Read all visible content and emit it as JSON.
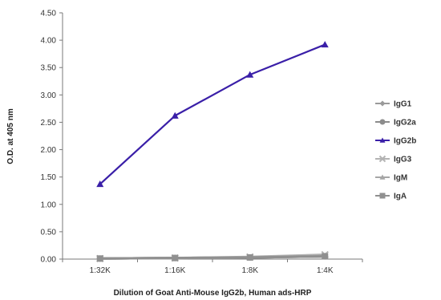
{
  "chart_data": {
    "type": "line",
    "title": "",
    "xlabel": "Dilution of Goat Anti-Mouse IgG2b, Human ads-HRP",
    "ylabel": "O.D. at 405 nm",
    "categories": [
      "1:32K",
      "1:16K",
      "1:8K",
      "1:4K"
    ],
    "ylim": [
      0,
      4.5
    ],
    "yticks": [
      "0.00",
      "0.50",
      "1.00",
      "1.50",
      "2.00",
      "2.50",
      "3.00",
      "3.50",
      "4.00",
      "4.50"
    ],
    "grid": false,
    "legend_position": "right",
    "series": [
      {
        "name": "IgG1",
        "values": [
          0.01,
          0.02,
          0.03,
          0.05
        ],
        "color": "#9a9a9a",
        "marker": "diamond"
      },
      {
        "name": "IgG2a",
        "values": [
          0.01,
          0.02,
          0.03,
          0.05
        ],
        "color": "#8c8c8c",
        "marker": "circle"
      },
      {
        "name": "IgG2b",
        "values": [
          1.37,
          2.62,
          3.37,
          3.92
        ],
        "color": "#3a1fa8",
        "marker": "triangle"
      },
      {
        "name": "IgG3",
        "values": [
          0.01,
          0.02,
          0.04,
          0.08
        ],
        "color": "#b3b3b3",
        "marker": "x"
      },
      {
        "name": "IgM",
        "values": [
          0.01,
          0.02,
          0.03,
          0.06
        ],
        "color": "#a6a6a6",
        "marker": "triangle"
      },
      {
        "name": "IgA",
        "values": [
          0.01,
          0.02,
          0.03,
          0.05
        ],
        "color": "#909090",
        "marker": "square"
      }
    ]
  }
}
